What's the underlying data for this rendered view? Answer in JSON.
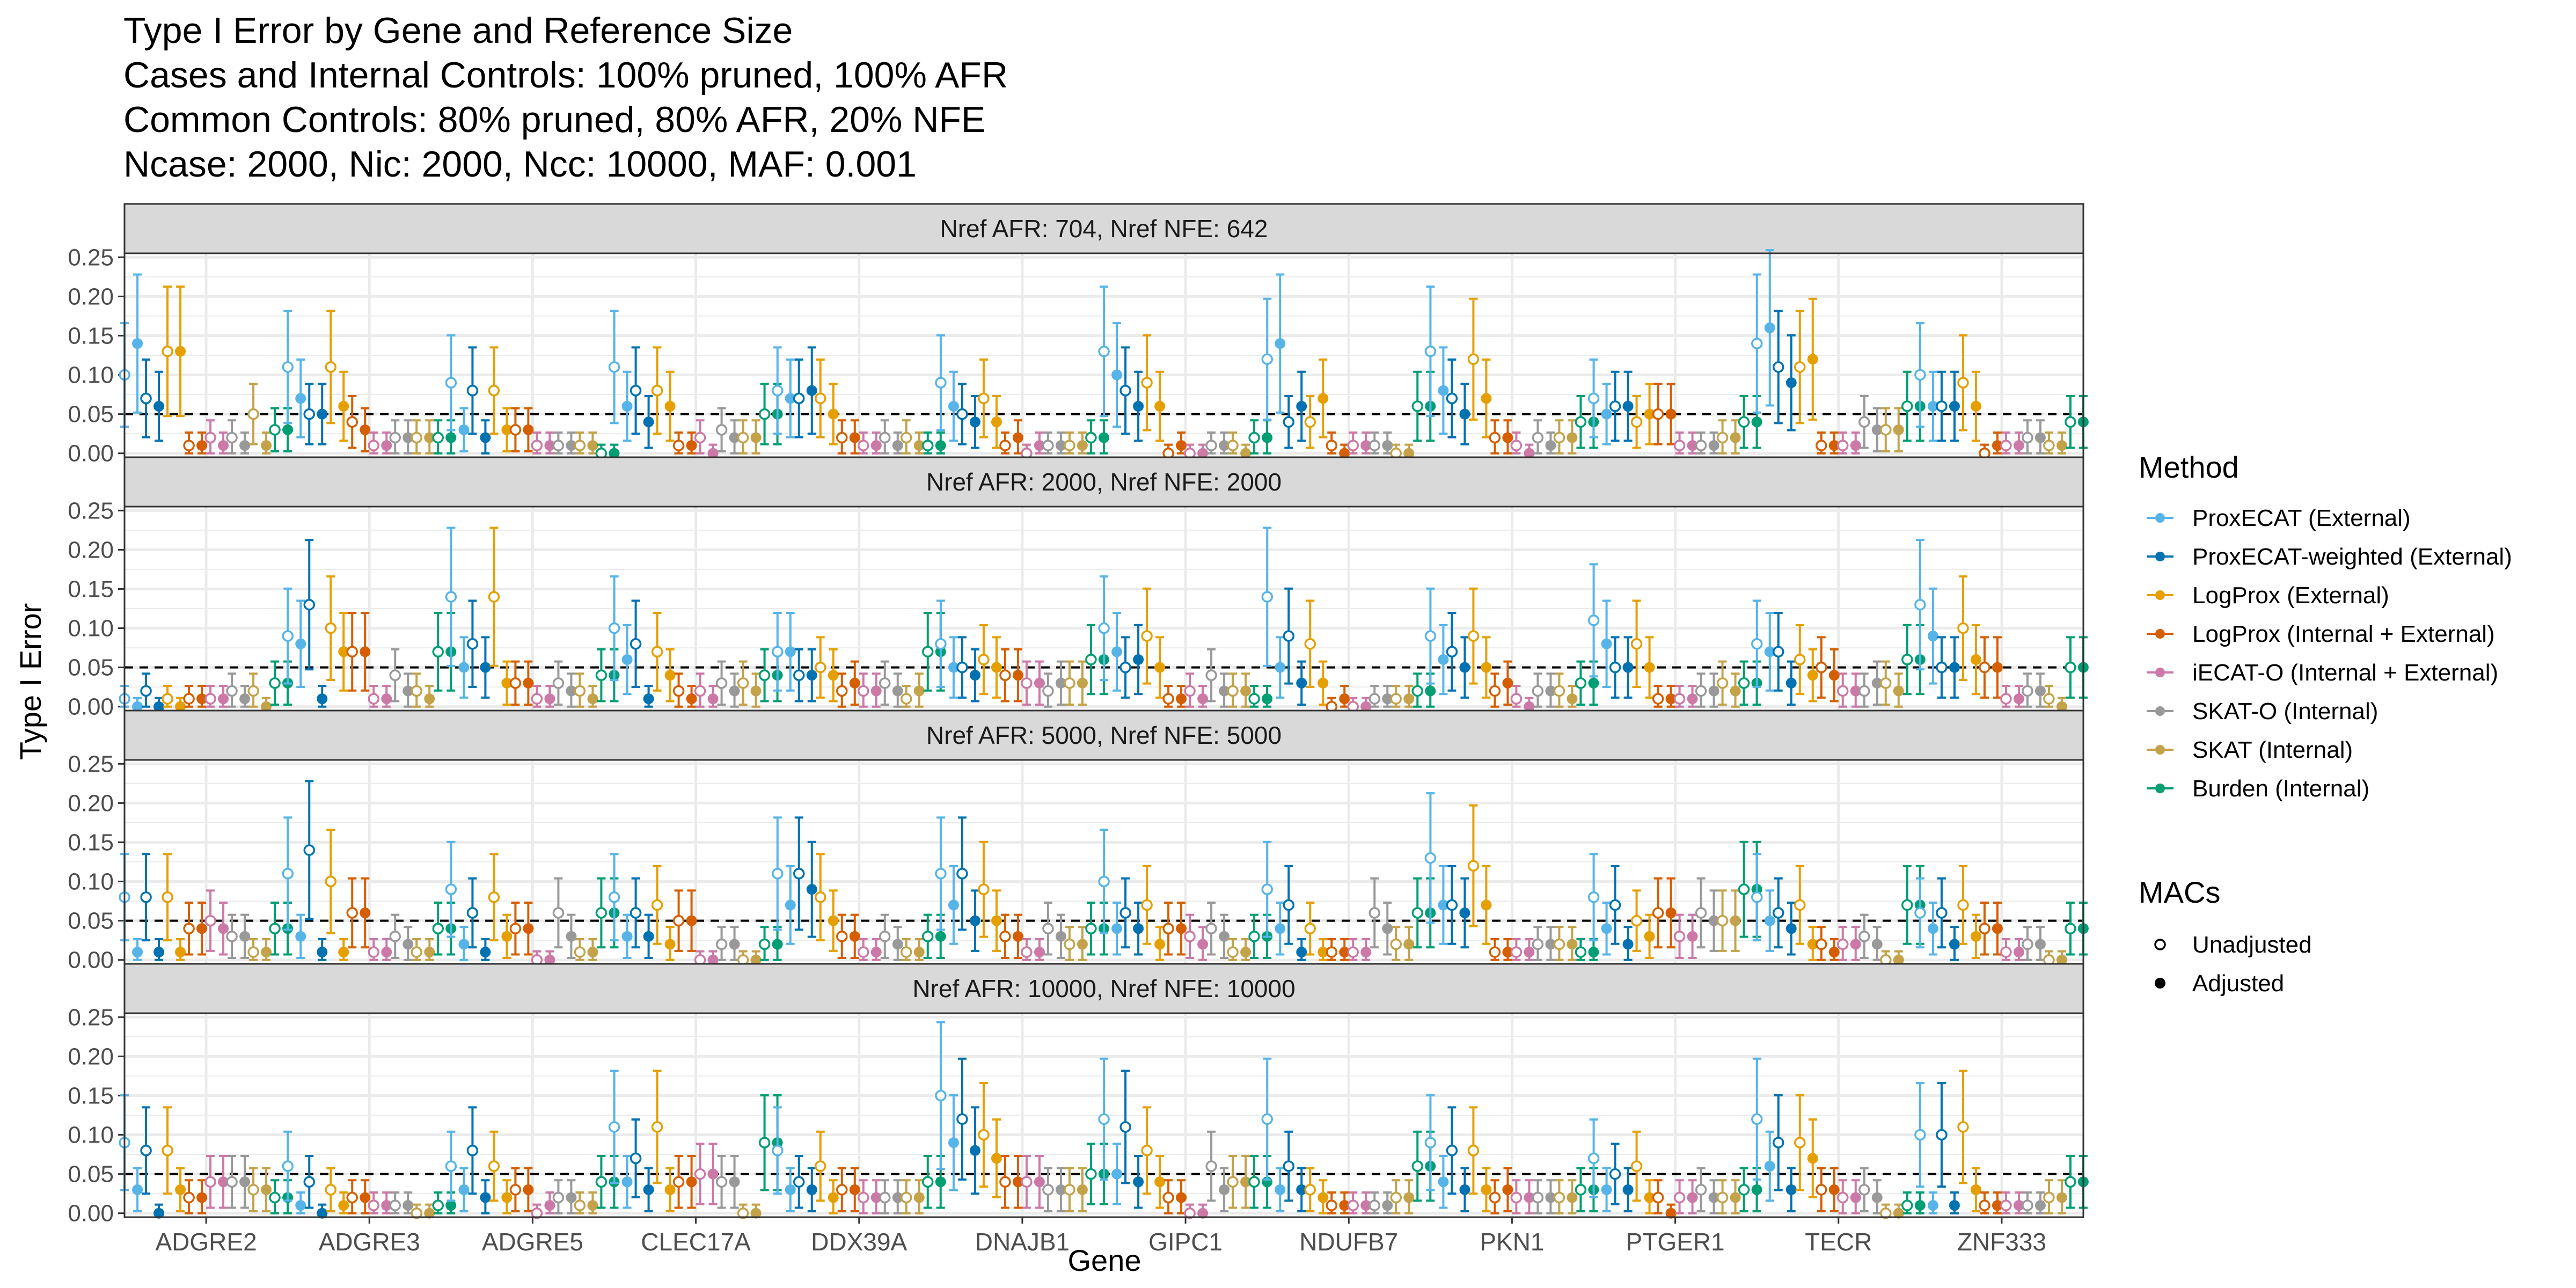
{
  "chart_data": {
    "type": "scatter",
    "title_lines": [
      "Type I Error by Gene and Reference Size",
      "Cases and Internal Controls: 100% pruned, 100% AFR",
      "Common Controls: 80% pruned, 80% AFR, 20% NFE",
      "Ncase: 2000, Nic: 2000, Ncc: 10000, MAF: 0.001"
    ],
    "xlabel": "Gene",
    "ylabel": "Type I Error",
    "ylim": [
      -0.005,
      0.255
    ],
    "yticks": [
      "0.00",
      "0.05",
      "0.10",
      "0.15",
      "0.20",
      "0.25"
    ],
    "reference_line": 0.05,
    "genes": [
      "ADGRE2",
      "ADGRE3",
      "ADGRE5",
      "CLEC17A",
      "DDX39A",
      "DNAJB1",
      "GIPC1",
      "NDUFB7",
      "PKN1",
      "PTGER1",
      "TECR",
      "ZNF333"
    ],
    "methods": [
      {
        "name": "ProxECAT (External)",
        "color": "#56B4E9"
      },
      {
        "name": "ProxECAT-weighted (External)",
        "color": "#0072B2"
      },
      {
        "name": "LogProx (External)",
        "color": "#E69F00"
      },
      {
        "name": "LogProx (Internal + External)",
        "color": "#D55E00"
      },
      {
        "name": "iECAT-O (Internal + External)",
        "color": "#CC79A7"
      },
      {
        "name": "SKAT-O (Internal)",
        "color": "#999999"
      },
      {
        "name": "SKAT (Internal)",
        "color": "#C4A24A"
      },
      {
        "name": "Burden (Internal)",
        "color": "#009E73"
      }
    ],
    "legend_title_method": "Method",
    "legend_title_macs": "MACs",
    "macs": [
      "Unadjusted",
      "Adjusted"
    ],
    "panels": [
      {
        "label": "Nref AFR: 704, Nref NFE: 642",
        "unadjusted": [
          [
            0.1,
            0.07,
            0.13,
            0.01,
            0.02,
            0.02,
            0.05,
            0.03
          ],
          [
            0.11,
            0.05,
            0.11,
            0.04,
            0.01,
            0.02,
            0.02,
            0.02
          ],
          [
            0.09,
            0.08,
            0.08,
            0.03,
            0.01,
            0.01,
            0.01,
            0.0
          ],
          [
            0.11,
            0.08,
            0.08,
            0.01,
            0.02,
            0.03,
            0.02,
            0.05
          ],
          [
            0.08,
            0.07,
            0.07,
            0.02,
            0.01,
            0.02,
            0.02,
            0.01
          ],
          [
            0.09,
            0.05,
            0.07,
            0.01,
            0.0,
            0.01,
            0.01,
            0.02
          ],
          [
            0.13,
            0.08,
            0.09,
            0.0,
            0.0,
            0.01,
            0.01,
            0.02
          ],
          [
            0.12,
            0.04,
            0.04,
            0.01,
            0.01,
            0.01,
            0.0,
            0.06
          ],
          [
            0.13,
            0.07,
            0.12,
            0.02,
            0.01,
            0.02,
            0.02,
            0.04
          ],
          [
            0.07,
            0.06,
            0.04,
            0.05,
            0.01,
            0.01,
            0.02,
            0.04
          ],
          [
            0.14,
            0.11,
            0.11,
            0.01,
            0.01,
            0.04,
            0.03,
            0.06
          ],
          [
            0.1,
            0.06,
            0.09,
            0.0,
            0.01,
            0.02,
            0.01,
            0.04
          ]
        ],
        "adjusted": [
          [
            0.14,
            0.06,
            0.13,
            0.01,
            0.01,
            0.01,
            0.01,
            0.03
          ],
          [
            0.07,
            0.05,
            0.06,
            0.03,
            0.01,
            0.02,
            0.02,
            0.02
          ],
          [
            0.03,
            0.02,
            0.03,
            0.03,
            0.01,
            0.01,
            0.01,
            0.0
          ],
          [
            0.06,
            0.04,
            0.06,
            0.01,
            0.0,
            0.02,
            0.02,
            0.05
          ],
          [
            0.07,
            0.08,
            0.05,
            0.02,
            0.01,
            0.01,
            0.01,
            0.01
          ],
          [
            0.06,
            0.04,
            0.04,
            0.02,
            0.01,
            0.01,
            0.01,
            0.02
          ],
          [
            0.1,
            0.06,
            0.06,
            0.01,
            0.0,
            0.01,
            0.0,
            0.02
          ],
          [
            0.14,
            0.06,
            0.07,
            0.0,
            0.01,
            0.01,
            0.0,
            0.06
          ],
          [
            0.08,
            0.05,
            0.07,
            0.02,
            0.0,
            0.01,
            0.02,
            0.04
          ],
          [
            0.05,
            0.06,
            0.05,
            0.05,
            0.01,
            0.01,
            0.02,
            0.04
          ],
          [
            0.16,
            0.09,
            0.12,
            0.01,
            0.01,
            0.03,
            0.03,
            0.06
          ],
          [
            0.06,
            0.06,
            0.06,
            0.01,
            0.01,
            0.02,
            0.01,
            0.04
          ]
        ]
      },
      {
        "label": "Nref AFR: 2000, Nref NFE: 2000",
        "unadjusted": [
          [
            0.01,
            0.02,
            0.01,
            0.01,
            0.01,
            0.02,
            0.02,
            0.03
          ],
          [
            0.09,
            0.13,
            0.1,
            0.07,
            0.01,
            0.04,
            0.02,
            0.07
          ],
          [
            0.14,
            0.08,
            0.14,
            0.03,
            0.01,
            0.03,
            0.02,
            0.04
          ],
          [
            0.1,
            0.08,
            0.07,
            0.02,
            0.02,
            0.03,
            0.03,
            0.04
          ],
          [
            0.07,
            0.04,
            0.05,
            0.02,
            0.02,
            0.03,
            0.01,
            0.07
          ],
          [
            0.08,
            0.05,
            0.06,
            0.04,
            0.03,
            0.02,
            0.03,
            0.06
          ],
          [
            0.1,
            0.05,
            0.09,
            0.01,
            0.02,
            0.04,
            0.02,
            0.01
          ],
          [
            0.14,
            0.09,
            0.08,
            0.0,
            0.0,
            0.01,
            0.01,
            0.02
          ],
          [
            0.09,
            0.07,
            0.09,
            0.02,
            0.01,
            0.02,
            0.02,
            0.03
          ],
          [
            0.11,
            0.05,
            0.08,
            0.01,
            0.01,
            0.02,
            0.03,
            0.03
          ],
          [
            0.08,
            0.07,
            0.06,
            0.05,
            0.02,
            0.02,
            0.03,
            0.06
          ],
          [
            0.13,
            0.05,
            0.1,
            0.05,
            0.01,
            0.02,
            0.01,
            0.05
          ]
        ],
        "adjusted": [
          [
            0.0,
            0.0,
            0.0,
            0.01,
            0.01,
            0.01,
            0.0,
            0.03
          ],
          [
            0.08,
            0.01,
            0.07,
            0.07,
            0.01,
            0.02,
            0.01,
            0.07
          ],
          [
            0.05,
            0.05,
            0.03,
            0.03,
            0.01,
            0.02,
            0.01,
            0.04
          ],
          [
            0.06,
            0.01,
            0.04,
            0.01,
            0.01,
            0.02,
            0.02,
            0.04
          ],
          [
            0.07,
            0.04,
            0.04,
            0.03,
            0.02,
            0.02,
            0.02,
            0.07
          ],
          [
            0.05,
            0.04,
            0.05,
            0.04,
            0.03,
            0.03,
            0.03,
            0.06
          ],
          [
            0.07,
            0.06,
            0.05,
            0.01,
            0.01,
            0.02,
            0.02,
            0.01
          ],
          [
            0.05,
            0.03,
            0.03,
            0.01,
            0.0,
            0.01,
            0.01,
            0.02
          ],
          [
            0.06,
            0.05,
            0.05,
            0.03,
            0.0,
            0.02,
            0.01,
            0.03
          ],
          [
            0.08,
            0.05,
            0.05,
            0.01,
            0.01,
            0.02,
            0.02,
            0.03
          ],
          [
            0.07,
            0.03,
            0.04,
            0.04,
            0.02,
            0.03,
            0.02,
            0.06
          ],
          [
            0.09,
            0.05,
            0.06,
            0.05,
            0.01,
            0.02,
            0.0,
            0.05
          ]
        ]
      },
      {
        "label": "Nref AFR: 5000, Nref NFE: 5000",
        "unadjusted": [
          [
            0.08,
            0.08,
            0.08,
            0.04,
            0.05,
            0.03,
            0.01,
            0.04
          ],
          [
            0.11,
            0.14,
            0.1,
            0.06,
            0.01,
            0.03,
            0.01,
            0.04
          ],
          [
            0.09,
            0.06,
            0.08,
            0.04,
            0.0,
            0.06,
            0.01,
            0.06
          ],
          [
            0.08,
            0.06,
            0.07,
            0.05,
            0.0,
            0.02,
            0.0,
            0.02
          ],
          [
            0.11,
            0.11,
            0.08,
            0.03,
            0.01,
            0.03,
            0.01,
            0.03
          ],
          [
            0.11,
            0.11,
            0.09,
            0.03,
            0.01,
            0.04,
            0.02,
            0.04
          ],
          [
            0.1,
            0.06,
            0.07,
            0.04,
            0.03,
            0.04,
            0.01,
            0.03
          ],
          [
            0.09,
            0.07,
            0.04,
            0.01,
            0.01,
            0.06,
            0.02,
            0.06
          ],
          [
            0.13,
            0.07,
            0.12,
            0.01,
            0.01,
            0.02,
            0.02,
            0.01
          ],
          [
            0.08,
            0.07,
            0.05,
            0.06,
            0.03,
            0.06,
            0.05,
            0.09
          ],
          [
            0.08,
            0.06,
            0.07,
            0.02,
            0.02,
            0.03,
            0.0,
            0.07
          ],
          [
            0.06,
            0.06,
            0.07,
            0.04,
            0.01,
            0.02,
            0.0,
            0.04
          ]
        ],
        "adjusted": [
          [
            0.01,
            0.01,
            0.01,
            0.04,
            0.04,
            0.03,
            0.01,
            0.04
          ],
          [
            0.03,
            0.01,
            0.01,
            0.06,
            0.01,
            0.02,
            0.01,
            0.04
          ],
          [
            0.02,
            0.01,
            0.03,
            0.04,
            0.0,
            0.03,
            0.01,
            0.06
          ],
          [
            0.03,
            0.03,
            0.02,
            0.05,
            0.0,
            0.02,
            0.0,
            0.02
          ],
          [
            0.07,
            0.09,
            0.05,
            0.03,
            0.01,
            0.02,
            0.01,
            0.03
          ],
          [
            0.07,
            0.05,
            0.05,
            0.03,
            0.01,
            0.03,
            0.02,
            0.04
          ],
          [
            0.04,
            0.04,
            0.02,
            0.04,
            0.02,
            0.03,
            0.01,
            0.03
          ],
          [
            0.04,
            0.01,
            0.01,
            0.01,
            0.01,
            0.04,
            0.02,
            0.06
          ],
          [
            0.07,
            0.06,
            0.07,
            0.01,
            0.01,
            0.02,
            0.02,
            0.01
          ],
          [
            0.04,
            0.02,
            0.03,
            0.06,
            0.03,
            0.05,
            0.05,
            0.09
          ],
          [
            0.05,
            0.04,
            0.02,
            0.01,
            0.02,
            0.02,
            0.0,
            0.07
          ],
          [
            0.04,
            0.02,
            0.03,
            0.04,
            0.01,
            0.02,
            0.0,
            0.04
          ]
        ]
      },
      {
        "label": "Nref AFR: 10000, Nref NFE: 10000",
        "unadjusted": [
          [
            0.09,
            0.08,
            0.08,
            0.02,
            0.04,
            0.04,
            0.03,
            0.02
          ],
          [
            0.06,
            0.04,
            0.03,
            0.02,
            0.01,
            0.01,
            0.0,
            0.01
          ],
          [
            0.06,
            0.08,
            0.06,
            0.03,
            0.0,
            0.02,
            0.01,
            0.04
          ],
          [
            0.11,
            0.07,
            0.11,
            0.04,
            0.05,
            0.04,
            0.0,
            0.09
          ],
          [
            0.08,
            0.04,
            0.06,
            0.03,
            0.02,
            0.02,
            0.02,
            0.04
          ],
          [
            0.15,
            0.12,
            0.1,
            0.04,
            0.04,
            0.03,
            0.03,
            0.05
          ],
          [
            0.12,
            0.11,
            0.08,
            0.02,
            0.0,
            0.06,
            0.04,
            0.04
          ],
          [
            0.12,
            0.06,
            0.03,
            0.01,
            0.01,
            0.01,
            0.02,
            0.06
          ],
          [
            0.09,
            0.08,
            0.08,
            0.02,
            0.02,
            0.02,
            0.02,
            0.03
          ],
          [
            0.07,
            0.05,
            0.06,
            0.02,
            0.02,
            0.03,
            0.02,
            0.03
          ],
          [
            0.12,
            0.09,
            0.09,
            0.03,
            0.02,
            0.03,
            0.0,
            0.01
          ],
          [
            0.1,
            0.1,
            0.11,
            0.01,
            0.01,
            0.01,
            0.02,
            0.04
          ]
        ],
        "adjusted": [
          [
            0.03,
            0.0,
            0.03,
            0.02,
            0.04,
            0.04,
            0.03,
            0.02
          ],
          [
            0.01,
            0.0,
            0.01,
            0.02,
            0.01,
            0.01,
            0.0,
            0.01
          ],
          [
            0.03,
            0.02,
            0.02,
            0.03,
            0.01,
            0.02,
            0.01,
            0.04
          ],
          [
            0.04,
            0.03,
            0.03,
            0.04,
            0.05,
            0.04,
            0.0,
            0.09
          ],
          [
            0.03,
            0.03,
            0.02,
            0.03,
            0.02,
            0.02,
            0.02,
            0.04
          ],
          [
            0.09,
            0.08,
            0.07,
            0.04,
            0.04,
            0.03,
            0.03,
            0.05
          ],
          [
            0.05,
            0.04,
            0.04,
            0.02,
            0.0,
            0.03,
            0.04,
            0.04
          ],
          [
            0.03,
            0.03,
            0.02,
            0.01,
            0.01,
            0.01,
            0.02,
            0.06
          ],
          [
            0.04,
            0.03,
            0.03,
            0.03,
            0.02,
            0.02,
            0.02,
            0.03
          ],
          [
            0.03,
            0.03,
            0.02,
            0.0,
            0.02,
            0.02,
            0.02,
            0.03
          ],
          [
            0.06,
            0.03,
            0.07,
            0.03,
            0.02,
            0.02,
            0.0,
            0.01
          ],
          [
            0.01,
            0.01,
            0.03,
            0.01,
            0.01,
            0.01,
            0.02,
            0.04
          ]
        ]
      }
    ]
  }
}
